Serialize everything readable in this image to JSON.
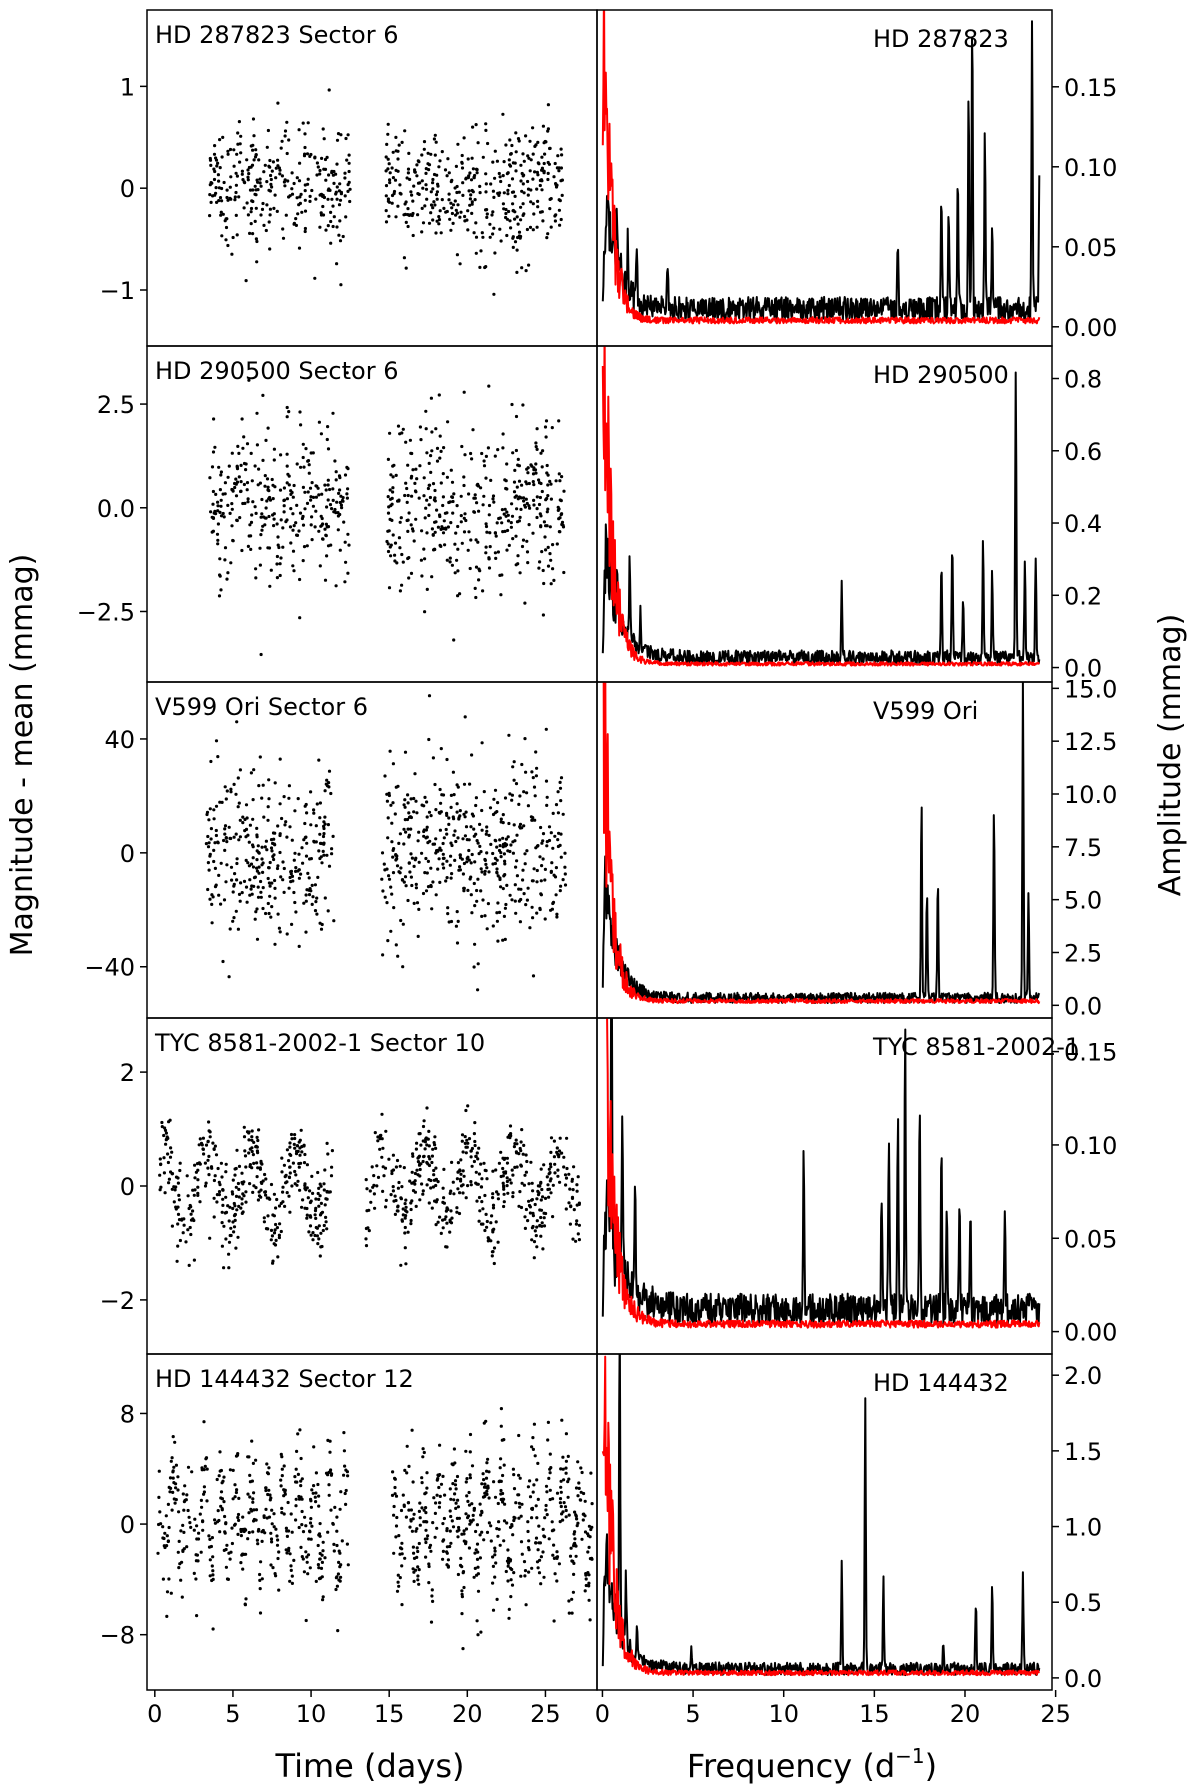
{
  "figure": {
    "ylabel_left": "Magnitude - mean (mmag)",
    "ylabel_right": "Amplitude (mmag)",
    "xlabel_left": "Time (days)",
    "xlabel_right_main": "Frequency (d",
    "xlabel_right_sup": "−1",
    "xlabel_right_close": ")",
    "colors": {
      "light_curve": "#000000",
      "spectrum": "#000000",
      "window": "#ff0000",
      "frame": "#000000"
    }
  },
  "chart_data": [
    {
      "type": "scatter",
      "title": "HD 287823 Sector 6",
      "star": "HD 287823",
      "xlabel": "Time (days)",
      "ylabel": "Magnitude - mean (mmag)",
      "xlim": [
        -0.5,
        28.3
      ],
      "ylim": [
        -1.55,
        1.75
      ],
      "yticks": [
        1,
        0,
        -1
      ],
      "ytick_labels": [
        "1",
        "0",
        "−1"
      ],
      "time_ranges": [
        [
          3.5,
          12.5
        ],
        [
          14.8,
          26.2
        ]
      ],
      "scatter_sigma": 0.32,
      "wave": null,
      "n_points": 720,
      "spectrum": {
        "xlim": [
          -0.3,
          24.8
        ],
        "ylim": [
          -0.012,
          0.198
        ],
        "yticks": [
          0.15,
          0.1,
          0.05,
          0.0
        ],
        "ytick_labels": [
          "0.15",
          "0.10",
          "0.05",
          "0.00"
        ],
        "noise_level": 0.011,
        "red_decay": 0.45,
        "red_floor": 0.006,
        "peaks": [
          {
            "f": 0.8,
            "a": 0.045
          },
          {
            "f": 1.4,
            "a": 0.03
          },
          {
            "f": 1.9,
            "a": 0.035
          },
          {
            "f": 3.6,
            "a": 0.028
          },
          {
            "f": 16.3,
            "a": 0.045
          },
          {
            "f": 18.7,
            "a": 0.07
          },
          {
            "f": 19.1,
            "a": 0.06
          },
          {
            "f": 19.6,
            "a": 0.085
          },
          {
            "f": 20.2,
            "a": 0.135
          },
          {
            "f": 20.4,
            "a": 0.185
          },
          {
            "f": 21.1,
            "a": 0.108
          },
          {
            "f": 21.5,
            "a": 0.055
          },
          {
            "f": 23.7,
            "a": 0.18
          },
          {
            "f": 24.1,
            "a": 0.085
          }
        ]
      }
    },
    {
      "type": "scatter",
      "title": "HD 290500 Sector 6",
      "star": "HD 290500",
      "xlabel": "Time (days)",
      "ylabel": "Magnitude - mean (mmag)",
      "xlim": [
        -0.5,
        28.3
      ],
      "ylim": [
        -4.2,
        3.9
      ],
      "yticks": [
        2.5,
        0.0,
        -2.5
      ],
      "ytick_labels": [
        "2.5",
        "0.0",
        "−2.5"
      ],
      "time_ranges": [
        [
          3.5,
          12.5
        ],
        [
          14.8,
          26.2
        ]
      ],
      "scatter_sigma": 1.0,
      "wave": null,
      "n_points": 760,
      "spectrum": {
        "xlim": [
          -0.3,
          24.8
        ],
        "ylim": [
          -0.04,
          0.89
        ],
        "yticks": [
          0.8,
          0.6,
          0.4,
          0.2,
          0.0
        ],
        "ytick_labels": [
          "0.8",
          "0.6",
          "0.4",
          "0.2",
          "0.0"
        ],
        "noise_level": 0.028,
        "red_decay": 0.5,
        "red_floor": 0.015,
        "peaks": [
          {
            "f": 0.8,
            "a": 0.14
          },
          {
            "f": 1.5,
            "a": 0.22
          },
          {
            "f": 2.1,
            "a": 0.1
          },
          {
            "f": 13.2,
            "a": 0.2
          },
          {
            "f": 18.7,
            "a": 0.27
          },
          {
            "f": 19.3,
            "a": 0.34
          },
          {
            "f": 19.9,
            "a": 0.16
          },
          {
            "f": 21.0,
            "a": 0.33
          },
          {
            "f": 21.5,
            "a": 0.26
          },
          {
            "f": 22.8,
            "a": 0.8
          },
          {
            "f": 23.3,
            "a": 0.28
          },
          {
            "f": 23.9,
            "a": 0.29
          }
        ]
      }
    },
    {
      "type": "scatter",
      "title": "V599 Ori Sector 6",
      "star": "V599 Ori",
      "xlabel": "Time (days)",
      "ylabel": "Magnitude - mean (mmag)",
      "xlim": [
        -0.5,
        28.3
      ],
      "ylim": [
        -58.0,
        60.0
      ],
      "yticks": [
        40,
        0,
        -40
      ],
      "ytick_labels": [
        "40",
        "0",
        "−40"
      ],
      "time_ranges": [
        [
          3.3,
          11.5
        ],
        [
          14.5,
          26.3
        ]
      ],
      "scatter_sigma": 16.0,
      "wave": null,
      "n_points": 820,
      "spectrum": {
        "xlim": [
          -0.3,
          24.8
        ],
        "ylim": [
          -0.6,
          15.3
        ],
        "yticks": [
          15.0,
          12.5,
          10.0,
          7.5,
          5.0,
          2.5,
          0.0
        ],
        "ytick_labels": [
          "15.0",
          "12.5",
          "10.0",
          "7.5",
          "5.0",
          "2.5",
          "0.0"
        ],
        "noise_level": 0.35,
        "red_decay": 0.45,
        "red_floor": 0.3,
        "peaks": [
          {
            "f": 17.6,
            "a": 9.4
          },
          {
            "f": 17.9,
            "a": 5.0
          },
          {
            "f": 18.5,
            "a": 5.6
          },
          {
            "f": 21.6,
            "a": 9.2
          },
          {
            "f": 23.2,
            "a": 15.0
          },
          {
            "f": 23.5,
            "a": 5.0
          }
        ]
      }
    },
    {
      "type": "scatter",
      "title": "TYC 8581-2002-1 Sector 10",
      "star": "TYC 8581-2002-1",
      "xlabel": "Time (days)",
      "ylabel": "Magnitude - mean (mmag)",
      "xlim": [
        -0.5,
        28.3
      ],
      "ylim": [
        -2.95,
        2.95
      ],
      "yticks": [
        2,
        0,
        -2
      ],
      "ytick_labels": [
        "2",
        "0",
        "−2"
      ],
      "time_ranges": [
        [
          0.3,
          11.5
        ],
        [
          13.5,
          27.2
        ]
      ],
      "scatter_sigma": 0.38,
      "wave": {
        "amp": 0.55,
        "period": 2.8
      },
      "n_points": 900,
      "spectrum": {
        "xlim": [
          -0.3,
          24.8
        ],
        "ylim": [
          -0.012,
          0.168
        ],
        "yticks": [
          0.15,
          0.1,
          0.05,
          0.0
        ],
        "ytick_labels": [
          "0.15",
          "0.10",
          "0.05",
          "0.00"
        ],
        "noise_level": 0.012,
        "red_decay": 0.55,
        "red_floor": 0.006,
        "peaks": [
          {
            "f": 0.5,
            "a": 0.16
          },
          {
            "f": 1.1,
            "a": 0.085
          },
          {
            "f": 1.8,
            "a": 0.065
          },
          {
            "f": 11.1,
            "a": 0.092
          },
          {
            "f": 15.4,
            "a": 0.065
          },
          {
            "f": 15.8,
            "a": 0.095
          },
          {
            "f": 16.3,
            "a": 0.105
          },
          {
            "f": 16.7,
            "a": 0.152
          },
          {
            "f": 17.5,
            "a": 0.11
          },
          {
            "f": 18.7,
            "a": 0.088
          },
          {
            "f": 19.0,
            "a": 0.055
          },
          {
            "f": 19.7,
            "a": 0.062
          },
          {
            "f": 20.3,
            "a": 0.05
          },
          {
            "f": 22.2,
            "a": 0.062
          }
        ]
      }
    },
    {
      "type": "scatter",
      "title": "HD 144432 Sector 12",
      "star": "HD 144432",
      "xlabel": "Time (days)",
      "ylabel": "Magnitude - mean (mmag)",
      "xlim": [
        -0.5,
        28.3
      ],
      "ylim": [
        -12.0,
        12.3
      ],
      "yticks": [
        8,
        0,
        -8
      ],
      "ytick_labels": [
        "8",
        "0",
        "−8"
      ],
      "time_ranges": [
        [
          0.2,
          12.4
        ],
        [
          15.2,
          28.0
        ]
      ],
      "scatter_sigma": 2.0,
      "wave": {
        "amp": 3.2,
        "period": 1.0
      },
      "n_points": 950,
      "spectrum": {
        "xlim": [
          -0.3,
          24.8
        ],
        "ylim": [
          -0.08,
          2.14
        ],
        "yticks": [
          2.0,
          1.5,
          1.0,
          0.5,
          0.0
        ],
        "ytick_labels": [
          "2.0",
          "1.5",
          "1.0",
          "0.5",
          "0.0"
        ],
        "noise_level": 0.06,
        "red_decay": 0.5,
        "red_floor": 0.05,
        "peaks": [
          {
            "f": 0.95,
            "a": 2.05
          },
          {
            "f": 1.3,
            "a": 0.45
          },
          {
            "f": 1.9,
            "a": 0.22
          },
          {
            "f": 4.9,
            "a": 0.15
          },
          {
            "f": 13.2,
            "a": 0.68
          },
          {
            "f": 14.5,
            "a": 1.78
          },
          {
            "f": 15.5,
            "a": 0.58
          },
          {
            "f": 18.8,
            "a": 0.18
          },
          {
            "f": 20.6,
            "a": 0.44
          },
          {
            "f": 21.5,
            "a": 0.54
          },
          {
            "f": 23.2,
            "a": 0.62
          }
        ]
      }
    }
  ],
  "axes": {
    "time_ticks": [
      0,
      5,
      10,
      15,
      20,
      25
    ],
    "time_tick_labels": [
      "0",
      "5",
      "10",
      "15",
      "20",
      "25"
    ],
    "freq_ticks": [
      0,
      5,
      10,
      15,
      20,
      25
    ],
    "freq_tick_labels": [
      "0",
      "5",
      "10",
      "15",
      "20",
      "25"
    ]
  }
}
